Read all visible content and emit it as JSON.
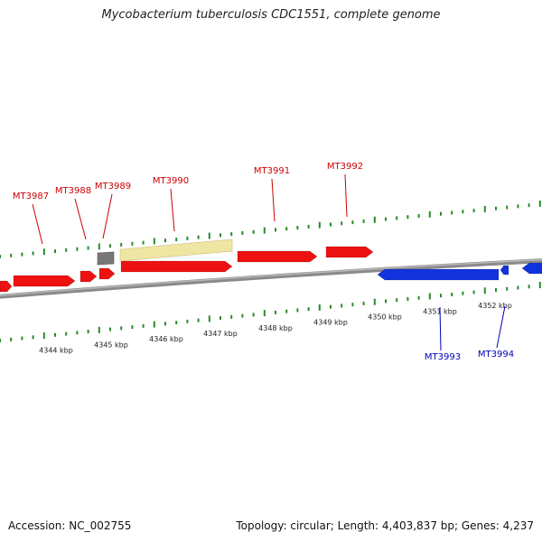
{
  "title": "Mycobacterium tuberculosis CDC1551, complete genome",
  "footer": {
    "accession": "Accession: NC_002755",
    "summary": "Topology: circular; Length: 4,403,837 bp; Genes: 4,237"
  },
  "colors": {
    "forward_gene": "#ee1111",
    "reverse_gene": "#1133dd",
    "rna_gene": "#777777",
    "region": "#f0e6a4",
    "backbone": "#8a8a8a",
    "ticks": "#2a8a2a",
    "label_forward": "#cc0000",
    "label_reverse": "#0000bb"
  },
  "scale_labels": [
    "4344 kbp",
    "4345 kbp",
    "4346 kbp",
    "4347 kbp",
    "4348 kbp",
    "4349 kbp",
    "4350 kbp",
    "4351 kbp",
    "4352 kbp"
  ],
  "gene_labels": [
    {
      "text": "MT3987",
      "strand": "forward"
    },
    {
      "text": "MT3988",
      "strand": "forward"
    },
    {
      "text": "MT3989",
      "strand": "forward"
    },
    {
      "text": "MT3990",
      "strand": "forward"
    },
    {
      "text": "MT3991",
      "strand": "forward"
    },
    {
      "text": "MT3992",
      "strand": "forward"
    },
    {
      "text": "MT3993",
      "strand": "reverse"
    },
    {
      "text": "MT3994",
      "strand": "reverse"
    }
  ]
}
